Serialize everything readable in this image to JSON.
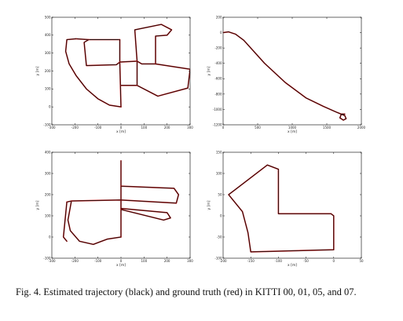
{
  "caption": {
    "text": "Fig. 4.    Estimated trajectory (black) and ground truth (red) in KITTI 00, 01, 05, and 07."
  },
  "chart_data": [
    {
      "type": "line",
      "sequence": "00",
      "xlabel": "x [m]",
      "ylabel": "y [m]",
      "xlim": [
        -300,
        300
      ],
      "ylim": [
        -100,
        500
      ],
      "xticks": [
        -300,
        -200,
        -100,
        0,
        100,
        200,
        300
      ],
      "yticks": [
        -100,
        0,
        100,
        200,
        300,
        400,
        500
      ],
      "segments": [
        [
          [
            -195,
            380
          ],
          [
            -140,
            375
          ],
          [
            -5,
            375
          ]
        ],
        [
          [
            -5,
            375
          ],
          [
            -5,
            250
          ]
        ],
        [
          [
            -5,
            250
          ],
          [
            -20,
            235
          ],
          [
            -150,
            230
          ],
          [
            -160,
            360
          ],
          [
            -140,
            375
          ]
        ],
        [
          [
            -195,
            380
          ],
          [
            -235,
            375
          ],
          [
            -240,
            310
          ],
          [
            -225,
            240
          ],
          [
            -195,
            175
          ],
          [
            -150,
            100
          ],
          [
            -100,
            45
          ],
          [
            -50,
            10
          ],
          [
            0,
            0
          ]
        ],
        [
          [
            -5,
            250
          ],
          [
            0,
            0
          ]
        ],
        [
          [
            -5,
            250
          ],
          [
            70,
            255
          ]
        ],
        [
          [
            70,
            255
          ],
          [
            60,
            430
          ],
          [
            175,
            460
          ],
          [
            220,
            430
          ],
          [
            200,
            400
          ],
          [
            150,
            395
          ],
          [
            150,
            240
          ]
        ],
        [
          [
            70,
            255
          ],
          [
            90,
            240
          ],
          [
            150,
            240
          ]
        ],
        [
          [
            150,
            240
          ],
          [
            300,
            210
          ],
          [
            290,
            105
          ],
          [
            160,
            60
          ],
          [
            70,
            120
          ],
          [
            70,
            255
          ]
        ],
        [
          [
            0,
            120
          ],
          [
            20,
            120
          ],
          [
            70,
            120
          ]
        ]
      ]
    },
    {
      "type": "line",
      "sequence": "01",
      "xlabel": "x [m]",
      "ylabel": "y [m]",
      "xlim": [
        0,
        2000
      ],
      "ylim": [
        -1200,
        200
      ],
      "xticks": [
        0,
        500,
        1000,
        1500,
        2000
      ],
      "yticks": [
        -1200,
        -1000,
        -800,
        -600,
        -400,
        -200,
        0,
        200
      ],
      "segments": [
        [
          [
            0,
            0
          ],
          [
            80,
            10
          ],
          [
            180,
            -20
          ],
          [
            300,
            -100
          ],
          [
            600,
            -400
          ],
          [
            900,
            -650
          ],
          [
            1200,
            -850
          ],
          [
            1450,
            -960
          ],
          [
            1650,
            -1040
          ],
          [
            1760,
            -1080
          ],
          [
            1780,
            -1120
          ],
          [
            1740,
            -1140
          ],
          [
            1690,
            -1110
          ],
          [
            1710,
            -1060
          ],
          [
            1760,
            -1060
          ]
        ]
      ]
    },
    {
      "type": "line",
      "sequence": "05",
      "xlabel": "x [m]",
      "ylabel": "y [m]",
      "xlim": [
        -300,
        300
      ],
      "ylim": [
        -100,
        400
      ],
      "xticks": [
        -300,
        -200,
        -100,
        0,
        100,
        200,
        300
      ],
      "yticks": [
        -100,
        0,
        100,
        200,
        300,
        400
      ],
      "segments": [
        [
          [
            0,
            360
          ],
          [
            0,
            0
          ]
        ],
        [
          [
            0,
            240
          ],
          [
            230,
            230
          ],
          [
            250,
            200
          ],
          [
            240,
            160
          ]
        ],
        [
          [
            -235,
            165
          ],
          [
            -215,
            170
          ],
          [
            0,
            175
          ],
          [
            240,
            160
          ]
        ],
        [
          [
            0,
            135
          ],
          [
            200,
            115
          ],
          [
            215,
            90
          ],
          [
            185,
            80
          ],
          [
            0,
            130
          ]
        ],
        [
          [
            -215,
            170
          ],
          [
            -230,
            80
          ],
          [
            -220,
            30
          ],
          [
            -180,
            -20
          ],
          [
            -120,
            -35
          ],
          [
            -60,
            -10
          ],
          [
            0,
            0
          ]
        ],
        [
          [
            -235,
            165
          ],
          [
            -250,
            0
          ],
          [
            -235,
            -20
          ]
        ]
      ]
    },
    {
      "type": "line",
      "sequence": "07",
      "xlabel": "x [m]",
      "ylabel": "y [m]",
      "xlim": [
        -200,
        50
      ],
      "ylim": [
        -100,
        150
      ],
      "xticks": [
        -200,
        -150,
        -100,
        -50,
        0,
        50
      ],
      "yticks": [
        -100,
        -50,
        0,
        50,
        100,
        150
      ],
      "segments": [
        [
          [
            0,
            0
          ],
          [
            0,
            -80
          ],
          [
            -150,
            -85
          ],
          [
            -155,
            -40
          ],
          [
            -165,
            10
          ],
          [
            -190,
            50
          ],
          [
            -180,
            60
          ],
          [
            -120,
            120
          ],
          [
            -100,
            110
          ],
          [
            -100,
            5
          ],
          [
            -5,
            5
          ],
          [
            0,
            0
          ]
        ]
      ]
    }
  ]
}
